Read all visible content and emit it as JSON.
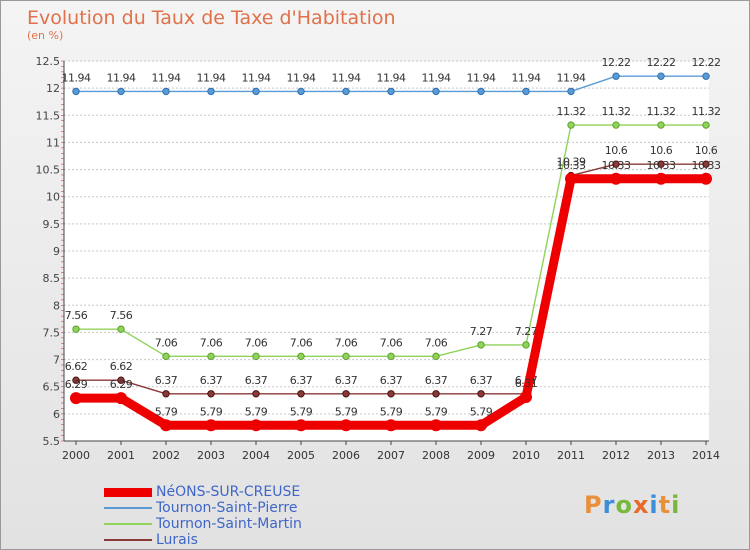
{
  "header": {
    "title": "Evolution du Taux de Taxe d'Habitation",
    "subtitle": "(en %)"
  },
  "logo": {
    "text": "Proxiti",
    "letter_colors": [
      "#e8903a",
      "#3a8fd8",
      "#78b83a",
      "#e86a2a",
      "#3a8fd8",
      "#e8903a",
      "#78b83a"
    ]
  },
  "chart_data": {
    "type": "line",
    "title": "Evolution du Taux de Taxe d'Habitation",
    "subtitle": "(en %)",
    "xlabel": "",
    "ylabel": "",
    "x": [
      "2000",
      "2001",
      "2002",
      "2003",
      "2004",
      "2005",
      "2006",
      "2007",
      "2008",
      "2009",
      "2010",
      "2011",
      "2012",
      "2013",
      "2014"
    ],
    "ylim": [
      5.5,
      12.5
    ],
    "yticks": [
      "5.5",
      "6",
      "6.5",
      "7",
      "7.5",
      "8",
      "8.5",
      "9",
      "9.5",
      "10",
      "10.5",
      "11",
      "11.5",
      "12",
      "12.5"
    ],
    "grid": "horizontal dashed",
    "legend_position": "bottom-left",
    "series": [
      {
        "name": "Tournon-Saint-Pierre",
        "color": "#5b9bd5",
        "values": [
          11.94,
          11.94,
          11.94,
          11.94,
          11.94,
          11.94,
          11.94,
          11.94,
          11.94,
          11.94,
          11.94,
          11.94,
          12.22,
          12.22,
          12.22
        ],
        "labels": [
          "11.94",
          "11.94",
          "11.94",
          "11.94",
          "11.94",
          "11.94",
          "11.94",
          "11.94",
          "11.94",
          "11.94",
          "11.94",
          "11.94",
          "12.22",
          "12.22",
          "12.22"
        ]
      },
      {
        "name": "Tournon-Saint-Martin",
        "color": "#8fd35b",
        "values": [
          7.56,
          7.56,
          7.06,
          7.06,
          7.06,
          7.06,
          7.06,
          7.06,
          7.06,
          7.27,
          7.27,
          11.32,
          11.32,
          11.32,
          11.32
        ],
        "labels": [
          "7.56",
          "7.56",
          "7.06",
          "7.06",
          "7.06",
          "7.06",
          "7.06",
          "7.06",
          "7.06",
          "7.27",
          "7.27",
          "11.32",
          "11.32",
          "11.32",
          "11.32"
        ]
      },
      {
        "name": "Lurais",
        "color": "#8b3a3a",
        "values": [
          6.62,
          6.62,
          6.37,
          6.37,
          6.37,
          6.37,
          6.37,
          6.37,
          6.37,
          6.37,
          6.37,
          10.39,
          10.6,
          10.6,
          10.6
        ],
        "labels": [
          "6.62",
          "6.62",
          "6.37",
          "6.37",
          "6.37",
          "6.37",
          "6.37",
          "6.37",
          "6.37",
          "6.37",
          "6.37",
          "10.39",
          "10.6",
          "10.6",
          "10.6"
        ]
      },
      {
        "name": "NéONS-SUR-CREUSE",
        "color": "#ee0000",
        "values": [
          6.29,
          6.29,
          5.79,
          5.79,
          5.79,
          5.79,
          5.79,
          5.79,
          5.79,
          5.79,
          6.31,
          10.33,
          10.33,
          10.33,
          10.33
        ],
        "labels": [
          "6.29",
          "6.29",
          "5.79",
          "5.79",
          "5.79",
          "5.79",
          "5.79",
          "5.79",
          "5.79",
          "5.79",
          "6.31",
          "10.33",
          "10.33",
          "10.33",
          "10.33"
        ]
      }
    ]
  },
  "legend": [
    {
      "label": "NéONS-SUR-CREUSE",
      "color": "#ee0000",
      "thick": true
    },
    {
      "label": "Tournon-Saint-Pierre",
      "color": "#5b9bd5",
      "thick": false
    },
    {
      "label": "Tournon-Saint-Martin",
      "color": "#8fd35b",
      "thick": false
    },
    {
      "label": "Lurais",
      "color": "#8b3a3a",
      "thick": false
    }
  ]
}
